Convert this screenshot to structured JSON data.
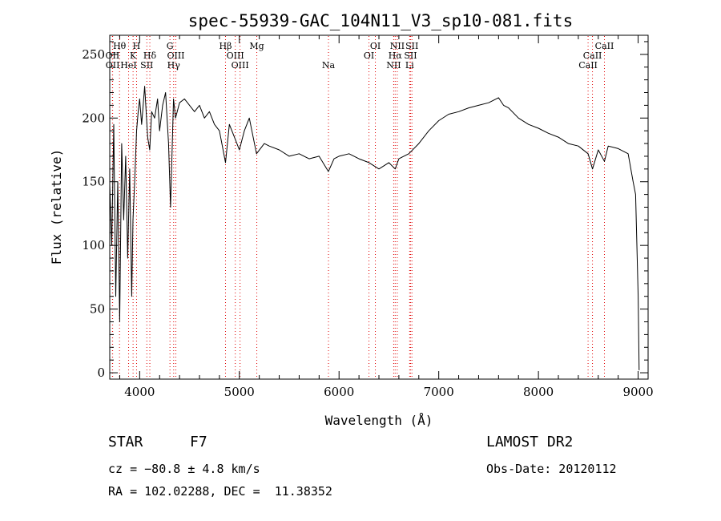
{
  "chart_data": {
    "type": "line",
    "title": "spec-55939-GAC_104N11_V3_sp10-081.fits",
    "xlabel": "Wavelength (Å)",
    "ylabel": "Flux (relative)",
    "xlim": [
      3700,
      9100
    ],
    "ylim": [
      -5,
      265
    ],
    "x_ticks": [
      4000,
      5000,
      6000,
      7000,
      8000,
      9000
    ],
    "y_ticks": [
      0,
      50,
      100,
      150,
      200,
      250
    ],
    "grid": false,
    "series": [
      {
        "x": [
          3700,
          3720,
          3740,
          3760,
          3780,
          3800,
          3820,
          3840,
          3860,
          3880,
          3900,
          3920,
          3933,
          3950,
          3969,
          3985,
          4000,
          4020,
          4050,
          4080,
          4101,
          4120,
          4150,
          4180,
          4200,
          4230,
          4260,
          4290,
          4310,
          4340,
          4360,
          4400,
          4450,
          4500,
          4550,
          4600,
          4650,
          4700,
          4750,
          4800,
          4861,
          4900,
          4950,
          5000,
          5050,
          5100,
          5172,
          5250,
          5300,
          5400,
          5500,
          5600,
          5700,
          5800,
          5893,
          5950,
          6000,
          6100,
          6200,
          6300,
          6400,
          6500,
          6563,
          6600,
          6700,
          6800,
          6900,
          7000,
          7100,
          7200,
          7300,
          7400,
          7500,
          7600,
          7650,
          7700,
          7800,
          7900,
          8000,
          8100,
          8200,
          8300,
          8400,
          8498,
          8542,
          8600,
          8662,
          8700,
          8800,
          8900,
          8950,
          8975,
          9000,
          9010
        ],
        "y": [
          148,
          100,
          195,
          60,
          150,
          40,
          180,
          120,
          170,
          90,
          160,
          60,
          120,
          150,
          190,
          205,
          215,
          195,
          225,
          185,
          175,
          205,
          200,
          215,
          190,
          210,
          220,
          180,
          130,
          215,
          200,
          212,
          215,
          210,
          205,
          210,
          200,
          205,
          195,
          190,
          165,
          195,
          185,
          175,
          190,
          200,
          172,
          180,
          178,
          175,
          170,
          172,
          168,
          170,
          158,
          168,
          170,
          172,
          168,
          165,
          160,
          165,
          160,
          168,
          172,
          180,
          190,
          198,
          203,
          205,
          208,
          210,
          212,
          216,
          210,
          208,
          200,
          195,
          192,
          188,
          185,
          180,
          178,
          172,
          160,
          175,
          166,
          178,
          176,
          172,
          150,
          140,
          60,
          2
        ]
      }
    ],
    "line_markers": [
      {
        "x": 3727,
        "label": "OII",
        "row": 1
      },
      {
        "x": 3729,
        "label": "OII",
        "row": 2
      },
      {
        "x": 3798,
        "label": "Hθ",
        "row": 0
      },
      {
        "x": 3889,
        "label": "HeI",
        "row": 2
      },
      {
        "x": 3934,
        "label": "K",
        "row": 1
      },
      {
        "x": 3969,
        "label": "H",
        "row": 0
      },
      {
        "x": 4072,
        "label": "SII",
        "row": 2
      },
      {
        "x": 4102,
        "label": "Hδ",
        "row": 1
      },
      {
        "x": 4304,
        "label": "G",
        "row": 0
      },
      {
        "x": 4341,
        "label": "Hγ",
        "row": 2
      },
      {
        "x": 4363,
        "label": "OIII",
        "row": 1
      },
      {
        "x": 4861,
        "label": "Hβ",
        "row": 0
      },
      {
        "x": 4959,
        "label": "OIII",
        "row": 1
      },
      {
        "x": 5007,
        "label": "OIII",
        "row": 2
      },
      {
        "x": 5175,
        "label": "Mg",
        "row": 0
      },
      {
        "x": 5894,
        "label": "Na",
        "row": 2
      },
      {
        "x": 6300,
        "label": "OI",
        "row": 1
      },
      {
        "x": 6364,
        "label": "OI",
        "row": 0
      },
      {
        "x": 6548,
        "label": "NII",
        "row": 2
      },
      {
        "x": 6563,
        "label": "Hα",
        "row": 1
      },
      {
        "x": 6584,
        "label": "NII",
        "row": 0
      },
      {
        "x": 6708,
        "label": "Li",
        "row": 2
      },
      {
        "x": 6717,
        "label": "SII",
        "row": 1
      },
      {
        "x": 6731,
        "label": "SII",
        "row": 0
      },
      {
        "x": 8498,
        "label": "CaII",
        "row": 2
      },
      {
        "x": 8542,
        "label": "CaII",
        "row": 1
      },
      {
        "x": 8662,
        "label": "CaII",
        "row": 0
      }
    ],
    "line_marker_color": "#e00000"
  },
  "info": {
    "object_class": "STAR",
    "subclass": "F7",
    "survey": "LAMOST DR2",
    "cz": "cz = −80.8 ± 4.8 km/s",
    "obs_date": "Obs-Date: 20120112",
    "coords": "RA = 102.02288, DEC =  11.38352"
  }
}
